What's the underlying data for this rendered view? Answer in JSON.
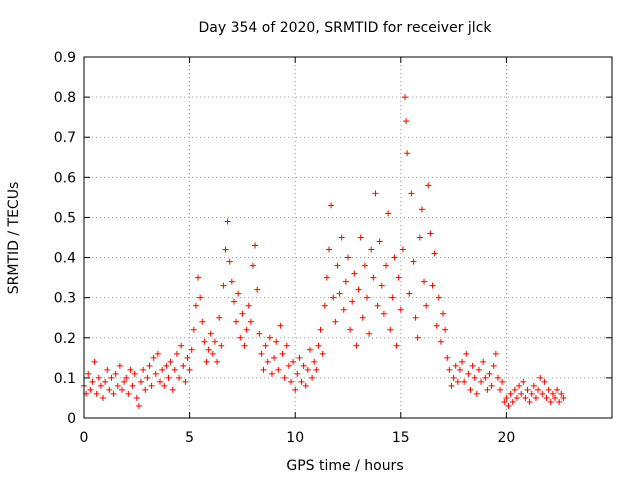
{
  "chart_data": {
    "type": "scatter",
    "title": "Day 354 of 2020, SRMTID for receiver jlck",
    "xlabel": "GPS time / hours",
    "ylabel": "SRMTID / TECUs",
    "xlim": [
      0,
      25
    ],
    "ylim": [
      0,
      0.9
    ],
    "xticks": [
      0,
      5,
      10,
      15,
      20
    ],
    "xtick_labels": [
      "0",
      "5",
      "10",
      "15",
      "20"
    ],
    "yticks": [
      0,
      0.1,
      0.2,
      0.3,
      0.4,
      0.5,
      0.6,
      0.7,
      0.8,
      0.9
    ],
    "ytick_labels": [
      "0",
      "0.1",
      "0.2",
      "0.3",
      "0.4",
      "0.5",
      "0.6",
      "0.7",
      "0.8",
      "0.9"
    ],
    "grid": true,
    "marker": "plus",
    "color": "#ff0000",
    "series": [
      {
        "name": "SRMTID",
        "points": [
          [
            0.0,
            0.08
          ],
          [
            0.1,
            0.06
          ],
          [
            0.2,
            0.11
          ],
          [
            0.3,
            0.07
          ],
          [
            0.4,
            0.09
          ],
          [
            0.5,
            0.14
          ],
          [
            0.6,
            0.06
          ],
          [
            0.7,
            0.1
          ],
          [
            0.8,
            0.08
          ],
          [
            0.9,
            0.05
          ],
          [
            1.0,
            0.09
          ],
          [
            1.1,
            0.12
          ],
          [
            1.2,
            0.07
          ],
          [
            1.3,
            0.1
          ],
          [
            1.4,
            0.06
          ],
          [
            1.5,
            0.11
          ],
          [
            1.6,
            0.08
          ],
          [
            1.7,
            0.13
          ],
          [
            1.8,
            0.07
          ],
          [
            1.9,
            0.09
          ],
          [
            2.0,
            0.1
          ],
          [
            2.1,
            0.06
          ],
          [
            2.2,
            0.12
          ],
          [
            2.3,
            0.08
          ],
          [
            2.4,
            0.11
          ],
          [
            2.5,
            0.05
          ],
          [
            2.6,
            0.03
          ],
          [
            2.7,
            0.09
          ],
          [
            2.8,
            0.12
          ],
          [
            2.9,
            0.07
          ],
          [
            3.0,
            0.1
          ],
          [
            3.1,
            0.13
          ],
          [
            3.2,
            0.08
          ],
          [
            3.3,
            0.15
          ],
          [
            3.4,
            0.11
          ],
          [
            3.5,
            0.16
          ],
          [
            3.6,
            0.09
          ],
          [
            3.7,
            0.12
          ],
          [
            3.8,
            0.08
          ],
          [
            3.9,
            0.13
          ],
          [
            4.0,
            0.1
          ],
          [
            4.1,
            0.14
          ],
          [
            4.2,
            0.07
          ],
          [
            4.3,
            0.12
          ],
          [
            4.4,
            0.16
          ],
          [
            4.5,
            0.1
          ],
          [
            4.6,
            0.18
          ],
          [
            4.7,
            0.13
          ],
          [
            4.8,
            0.09
          ],
          [
            4.9,
            0.15
          ],
          [
            5.0,
            0.12
          ],
          [
            5.1,
            0.17
          ],
          [
            5.2,
            0.22
          ],
          [
            5.3,
            0.28
          ],
          [
            5.4,
            0.35
          ],
          [
            5.5,
            0.3
          ],
          [
            5.6,
            0.24
          ],
          [
            5.7,
            0.19
          ],
          [
            5.8,
            0.14
          ],
          [
            5.9,
            0.17
          ],
          [
            6.0,
            0.21
          ],
          [
            6.1,
            0.16
          ],
          [
            6.2,
            0.19
          ],
          [
            6.3,
            0.14
          ],
          [
            6.4,
            0.25
          ],
          [
            6.5,
            0.18
          ],
          [
            6.6,
            0.33
          ],
          [
            6.7,
            0.42
          ],
          [
            6.8,
            0.49
          ],
          [
            6.9,
            0.39
          ],
          [
            7.0,
            0.34
          ],
          [
            7.1,
            0.29
          ],
          [
            7.2,
            0.24
          ],
          [
            7.3,
            0.31
          ],
          [
            7.4,
            0.2
          ],
          [
            7.5,
            0.26
          ],
          [
            7.6,
            0.18
          ],
          [
            7.7,
            0.22
          ],
          [
            7.8,
            0.28
          ],
          [
            7.9,
            0.24
          ],
          [
            8.0,
            0.38
          ],
          [
            8.1,
            0.43
          ],
          [
            8.2,
            0.32
          ],
          [
            8.3,
            0.21
          ],
          [
            8.4,
            0.16
          ],
          [
            8.5,
            0.12
          ],
          [
            8.6,
            0.18
          ],
          [
            8.7,
            0.14
          ],
          [
            8.8,
            0.2
          ],
          [
            8.9,
            0.11
          ],
          [
            9.0,
            0.15
          ],
          [
            9.1,
            0.19
          ],
          [
            9.2,
            0.12
          ],
          [
            9.3,
            0.23
          ],
          [
            9.4,
            0.16
          ],
          [
            9.5,
            0.1
          ],
          [
            9.6,
            0.18
          ],
          [
            9.7,
            0.13
          ],
          [
            9.8,
            0.09
          ],
          [
            9.9,
            0.14
          ],
          [
            10.0,
            0.07
          ],
          [
            10.1,
            0.11
          ],
          [
            10.2,
            0.15
          ],
          [
            10.3,
            0.09
          ],
          [
            10.4,
            0.13
          ],
          [
            10.5,
            0.08
          ],
          [
            10.6,
            0.12
          ],
          [
            10.7,
            0.17
          ],
          [
            10.8,
            0.1
          ],
          [
            10.9,
            0.14
          ],
          [
            11.0,
            0.12
          ],
          [
            11.1,
            0.18
          ],
          [
            11.2,
            0.22
          ],
          [
            11.3,
            0.16
          ],
          [
            11.4,
            0.28
          ],
          [
            11.5,
            0.35
          ],
          [
            11.6,
            0.42
          ],
          [
            11.7,
            0.53
          ],
          [
            11.8,
            0.3
          ],
          [
            11.9,
            0.24
          ],
          [
            12.0,
            0.38
          ],
          [
            12.1,
            0.31
          ],
          [
            12.2,
            0.45
          ],
          [
            12.3,
            0.27
          ],
          [
            12.4,
            0.34
          ],
          [
            12.5,
            0.4
          ],
          [
            12.6,
            0.22
          ],
          [
            12.7,
            0.29
          ],
          [
            12.8,
            0.36
          ],
          [
            12.9,
            0.18
          ],
          [
            13.0,
            0.32
          ],
          [
            13.1,
            0.45
          ],
          [
            13.2,
            0.25
          ],
          [
            13.3,
            0.38
          ],
          [
            13.4,
            0.3
          ],
          [
            13.5,
            0.21
          ],
          [
            13.6,
            0.42
          ],
          [
            13.7,
            0.35
          ],
          [
            13.8,
            0.56
          ],
          [
            13.9,
            0.28
          ],
          [
            14.0,
            0.44
          ],
          [
            14.1,
            0.33
          ],
          [
            14.2,
            0.26
          ],
          [
            14.3,
            0.38
          ],
          [
            14.4,
            0.51
          ],
          [
            14.5,
            0.22
          ],
          [
            14.6,
            0.3
          ],
          [
            14.7,
            0.4
          ],
          [
            14.8,
            0.18
          ],
          [
            14.9,
            0.35
          ],
          [
            15.0,
            0.27
          ],
          [
            15.1,
            0.42
          ],
          [
            15.2,
            0.8
          ],
          [
            15.25,
            0.74
          ],
          [
            15.3,
            0.66
          ],
          [
            15.4,
            0.31
          ],
          [
            15.5,
            0.56
          ],
          [
            15.6,
            0.39
          ],
          [
            15.7,
            0.25
          ],
          [
            15.8,
            0.2
          ],
          [
            15.9,
            0.45
          ],
          [
            16.0,
            0.52
          ],
          [
            16.1,
            0.34
          ],
          [
            16.2,
            0.28
          ],
          [
            16.3,
            0.58
          ],
          [
            16.4,
            0.46
          ],
          [
            16.5,
            0.33
          ],
          [
            16.6,
            0.41
          ],
          [
            16.7,
            0.23
          ],
          [
            16.8,
            0.3
          ],
          [
            16.9,
            0.19
          ],
          [
            17.0,
            0.26
          ],
          [
            17.1,
            0.22
          ],
          [
            17.2,
            0.15
          ],
          [
            17.3,
            0.12
          ],
          [
            17.4,
            0.08
          ],
          [
            17.5,
            0.1
          ],
          [
            17.6,
            0.13
          ],
          [
            17.7,
            0.09
          ],
          [
            17.8,
            0.12
          ],
          [
            17.9,
            0.14
          ],
          [
            18.0,
            0.09
          ],
          [
            18.1,
            0.16
          ],
          [
            18.2,
            0.11
          ],
          [
            18.3,
            0.07
          ],
          [
            18.4,
            0.13
          ],
          [
            18.5,
            0.1
          ],
          [
            18.6,
            0.06
          ],
          [
            18.7,
            0.12
          ],
          [
            18.8,
            0.09
          ],
          [
            18.9,
            0.14
          ],
          [
            19.0,
            0.1
          ],
          [
            19.1,
            0.07
          ],
          [
            19.2,
            0.11
          ],
          [
            19.3,
            0.08
          ],
          [
            19.4,
            0.13
          ],
          [
            19.5,
            0.16
          ],
          [
            19.6,
            0.1
          ],
          [
            19.7,
            0.07
          ],
          [
            19.8,
            0.09
          ],
          [
            19.9,
            0.04
          ],
          [
            20.0,
            0.05
          ],
          [
            20.1,
            0.03
          ],
          [
            20.2,
            0.06
          ],
          [
            20.3,
            0.04
          ],
          [
            20.4,
            0.07
          ],
          [
            20.5,
            0.05
          ],
          [
            20.6,
            0.08
          ],
          [
            20.7,
            0.06
          ],
          [
            20.8,
            0.09
          ],
          [
            20.9,
            0.05
          ],
          [
            21.0,
            0.07
          ],
          [
            21.1,
            0.04
          ],
          [
            21.2,
            0.06
          ],
          [
            21.3,
            0.08
          ],
          [
            21.4,
            0.05
          ],
          [
            21.5,
            0.07
          ],
          [
            21.6,
            0.1
          ],
          [
            21.7,
            0.06
          ],
          [
            21.8,
            0.09
          ],
          [
            21.9,
            0.05
          ],
          [
            22.0,
            0.07
          ],
          [
            22.1,
            0.04
          ],
          [
            22.2,
            0.06
          ],
          [
            22.3,
            0.05
          ],
          [
            22.4,
            0.07
          ],
          [
            22.5,
            0.04
          ],
          [
            22.6,
            0.06
          ],
          [
            22.7,
            0.05
          ]
        ]
      }
    ]
  }
}
